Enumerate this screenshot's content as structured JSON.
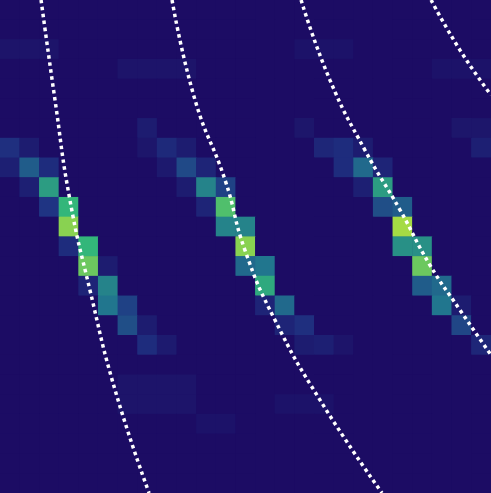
{
  "chart_data": {
    "type": "heatmap",
    "cells": [
      [
        0,
        0,
        0,
        0,
        0,
        0,
        0,
        0,
        0,
        0,
        0,
        0,
        0,
        0,
        0,
        0,
        0,
        0,
        0,
        0,
        0,
        0,
        0,
        0,
        0
      ],
      [
        0,
        0,
        0,
        0,
        0,
        0,
        0,
        0,
        0,
        0,
        0,
        0,
        0,
        0,
        0,
        0,
        0,
        0,
        0,
        0,
        0,
        0,
        0,
        0,
        0
      ],
      [
        0.05,
        0.05,
        0.05,
        0,
        0,
        0,
        0,
        0,
        0,
        0,
        0,
        0,
        0,
        0,
        0,
        0.04,
        0.04,
        0.04,
        0,
        0,
        0,
        0,
        0,
        0,
        0
      ],
      [
        0,
        0,
        0,
        0,
        0,
        0,
        0.05,
        0.05,
        0.05,
        0.05,
        0,
        0,
        0,
        0,
        0,
        0,
        0,
        0,
        0,
        0,
        0,
        0,
        0.04,
        0.04,
        0.04
      ],
      [
        0,
        0,
        0,
        0,
        0,
        0,
        0,
        0,
        0,
        0,
        0,
        0,
        0,
        0,
        0,
        0,
        0,
        0,
        0,
        0,
        0,
        0,
        0,
        0,
        0
      ],
      [
        0,
        0,
        0,
        0,
        0,
        0,
        0,
        0,
        0,
        0,
        0,
        0,
        0,
        0,
        0,
        0,
        0,
        0,
        0,
        0,
        0,
        0,
        0,
        0,
        0
      ],
      [
        0,
        0,
        0,
        0,
        0,
        0,
        0,
        0.1,
        0,
        0,
        0,
        0,
        0,
        0,
        0,
        0.06,
        0,
        0,
        0,
        0,
        0,
        0,
        0,
        0.06,
        0.06
      ],
      [
        0.22,
        0.1,
        0,
        0,
        0,
        0,
        0,
        0.06,
        0.18,
        0.1,
        0,
        0,
        0,
        0,
        0,
        0,
        0.16,
        0.2,
        0.1,
        0,
        0,
        0,
        0,
        0,
        0.12
      ],
      [
        0.12,
        0.4,
        0.2,
        0,
        0,
        0,
        0,
        0,
        0.08,
        0.33,
        0.15,
        0,
        0,
        0,
        0,
        0,
        0,
        0.2,
        0.45,
        0.15,
        0,
        0,
        0,
        0,
        0
      ],
      [
        0,
        0.12,
        0.65,
        0,
        0,
        0,
        0,
        0,
        0,
        0.1,
        0.55,
        0.3,
        0,
        0,
        0,
        0,
        0,
        0,
        0.12,
        0.65,
        0,
        0,
        0,
        0,
        0
      ],
      [
        0,
        0,
        0.25,
        0.75,
        0,
        0,
        0,
        0,
        0,
        0,
        0.15,
        0.8,
        0,
        0,
        0,
        0,
        0,
        0,
        0,
        0.35,
        0.4,
        0,
        0,
        0,
        0
      ],
      [
        0,
        0,
        0,
        0.9,
        0,
        0,
        0,
        0,
        0,
        0,
        0,
        0.55,
        0.55,
        0,
        0,
        0,
        0,
        0,
        0,
        0,
        0.95,
        0,
        0,
        0,
        0
      ],
      [
        0,
        0,
        0,
        0.2,
        0.75,
        0,
        0,
        0,
        0,
        0,
        0,
        0,
        0.9,
        0,
        0,
        0,
        0,
        0,
        0,
        0,
        0.6,
        0.6,
        0,
        0,
        0
      ],
      [
        0,
        0,
        0,
        0,
        0.85,
        0.1,
        0,
        0,
        0,
        0,
        0,
        0,
        0.45,
        0.5,
        0,
        0,
        0,
        0,
        0,
        0,
        0,
        0.85,
        0,
        0,
        0
      ],
      [
        0,
        0,
        0,
        0,
        0.15,
        0.55,
        0,
        0,
        0,
        0,
        0,
        0,
        0,
        0.7,
        0,
        0,
        0,
        0,
        0,
        0,
        0,
        0.4,
        0.45,
        0,
        0
      ],
      [
        0,
        0,
        0,
        0,
        0,
        0.5,
        0.3,
        0,
        0,
        0,
        0,
        0,
        0,
        0.15,
        0.45,
        0,
        0,
        0,
        0,
        0,
        0,
        0,
        0.5,
        0.1,
        0
      ],
      [
        0,
        0,
        0,
        0,
        0,
        0,
        0.35,
        0.1,
        0,
        0,
        0,
        0,
        0,
        0,
        0.15,
        0.22,
        0,
        0,
        0,
        0,
        0,
        0,
        0,
        0.32,
        0
      ],
      [
        0,
        0,
        0,
        0,
        0,
        0,
        0,
        0.2,
        0.09,
        0,
        0,
        0,
        0,
        0,
        0,
        0.1,
        0.12,
        0.05,
        0,
        0,
        0,
        0,
        0,
        0,
        0.16
      ],
      [
        0,
        0,
        0,
        0,
        0,
        0,
        0,
        0,
        0,
        0,
        0,
        0,
        0,
        0,
        0,
        0,
        0,
        0,
        0,
        0,
        0,
        0,
        0,
        0,
        0
      ],
      [
        0,
        0,
        0,
        0,
        0,
        0,
        0.05,
        0.05,
        0.05,
        0.05,
        0,
        0,
        0,
        0,
        0,
        0,
        0,
        0,
        0,
        0,
        0,
        0,
        0,
        0,
        0
      ],
      [
        0,
        0,
        0,
        0,
        0,
        0,
        0.05,
        0.05,
        0.05,
        0.05,
        0,
        0,
        0,
        0,
        0.04,
        0.04,
        0.04,
        0,
        0,
        0,
        0,
        0,
        0,
        0,
        0
      ],
      [
        0,
        0,
        0,
        0,
        0,
        0,
        0,
        0,
        0,
        0,
        0.04,
        0.04,
        0,
        0,
        0,
        0,
        0,
        0,
        0,
        0,
        0,
        0,
        0,
        0,
        0
      ],
      [
        0,
        0,
        0,
        0,
        0,
        0,
        0,
        0,
        0,
        0,
        0,
        0,
        0,
        0,
        0,
        0,
        0,
        0,
        0,
        0,
        0,
        0,
        0,
        0,
        0
      ],
      [
        0,
        0,
        0,
        0,
        0,
        0,
        0,
        0,
        0,
        0,
        0,
        0,
        0,
        0,
        0,
        0,
        0,
        0,
        0,
        0,
        0,
        0,
        0,
        0,
        0
      ],
      [
        0,
        0,
        0,
        0,
        0,
        0,
        0,
        0,
        0,
        0,
        0,
        0,
        0,
        0,
        0,
        0,
        0,
        0,
        0,
        0,
        0,
        0,
        0,
        0,
        0
      ]
    ],
    "zlim": [
      0,
      1
    ],
    "xlim": [
      0,
      25
    ],
    "ylim": [
      0,
      25
    ],
    "tick_labels": false,
    "grid": false,
    "series": [
      {
        "type": "line",
        "color": "#ffffff",
        "line_style": "dotted",
        "x": [
          2.09,
          2.8,
          3.56,
          4.58,
          5.86,
          7.59
        ],
        "values": [
          25,
          19.93,
          14.86,
          10.29,
          5.22,
          0
        ]
      },
      {
        "type": "line",
        "color": "#ffffff",
        "line_style": "dotted",
        "x": [
          8.76,
          9.93,
          11.46,
          12.47,
          14.0,
          16.29,
          19.45
        ],
        "values": [
          25,
          19.93,
          15.87,
          12.32,
          8.77,
          4.72,
          0
        ]
      },
      {
        "type": "line",
        "color": "#ffffff",
        "line_style": "dotted",
        "x": [
          15.33,
          16.8,
          18.58,
          20.37,
          21.89,
          23.42,
          25.0
        ],
        "values": [
          25,
          20.94,
          17.39,
          14.35,
          11.56,
          9.28,
          7.0
        ]
      },
      {
        "type": "line",
        "color": "#ffffff",
        "line_style": "dotted",
        "x": [
          21.95,
          23.42,
          25.0
        ],
        "values": [
          25,
          22.46,
          20.18
        ]
      }
    ]
  }
}
